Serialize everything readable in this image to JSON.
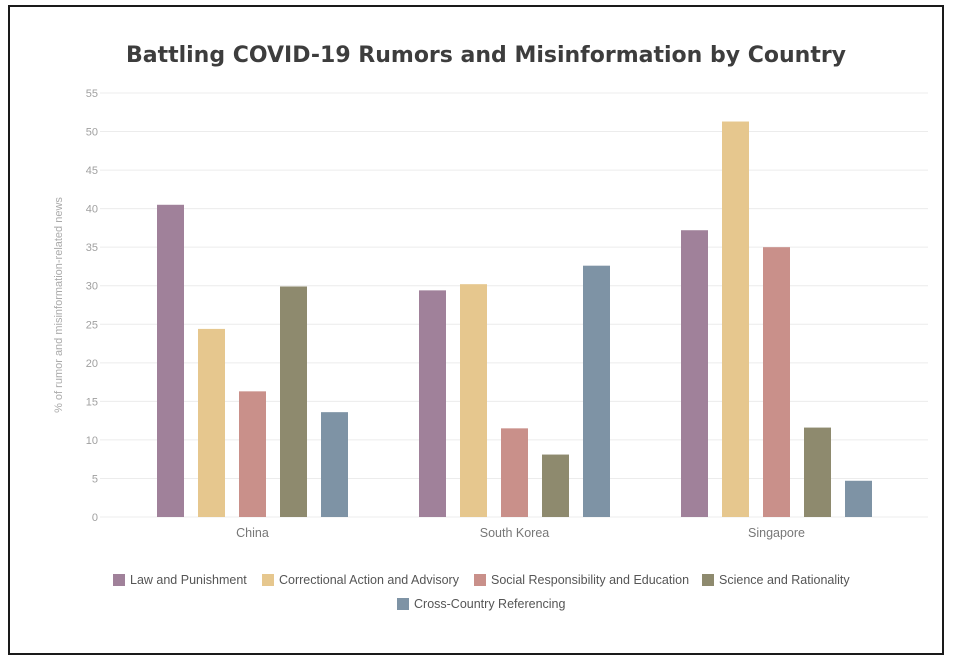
{
  "chart_data": {
    "type": "bar",
    "title": "Battling COVID-19 Rumors and Misinformation by Country",
    "ylabel": "% of rumor and misinformation-related news",
    "xlabel": "",
    "categories": [
      "China",
      "South Korea",
      "Singapore"
    ],
    "ylim": [
      0,
      55
    ],
    "yticks": [
      0,
      5,
      10,
      15,
      20,
      25,
      30,
      35,
      40,
      45,
      50,
      55
    ],
    "grid": true,
    "legend_position": "bottom",
    "series": [
      {
        "name": "Law and Punishment",
        "color": "#a0819a",
        "values": [
          40.5,
          29.4,
          37.2
        ]
      },
      {
        "name": "Correctional Action and Advisory",
        "color": "#e6c78e",
        "values": [
          24.4,
          30.2,
          51.3
        ]
      },
      {
        "name": "Social Responsibility and Education",
        "color": "#c9908a",
        "values": [
          16.3,
          11.5,
          35.0
        ]
      },
      {
        "name": "Science and Rationality",
        "color": "#8e8a6e",
        "values": [
          29.9,
          8.1,
          11.6
        ]
      },
      {
        "name": "Cross-Country Referencing",
        "color": "#7e93a5",
        "values": [
          13.6,
          32.6,
          4.7
        ]
      }
    ]
  }
}
